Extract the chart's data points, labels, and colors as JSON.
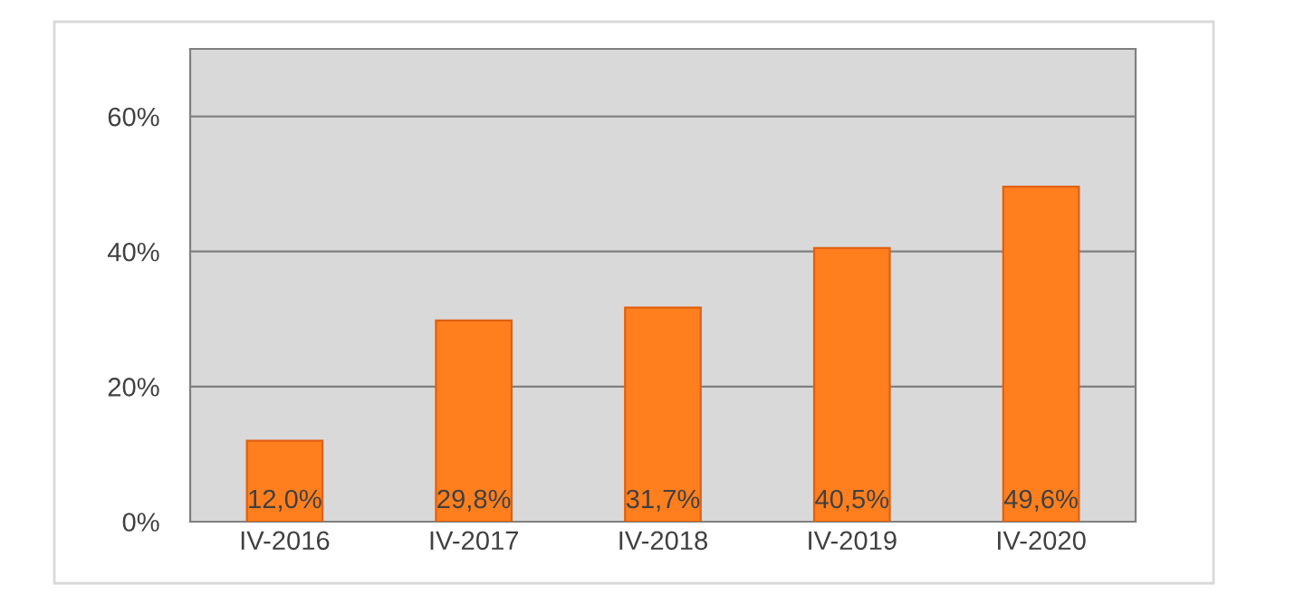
{
  "chart_data": {
    "type": "bar",
    "categories": [
      "IV-2016",
      "IV-2017",
      "IV-2018",
      "IV-2019",
      "IV-2020"
    ],
    "values": [
      12.0,
      29.8,
      31.7,
      40.5,
      49.6
    ],
    "value_labels": [
      "12,0%",
      "29,8%",
      "31,7%",
      "40,5%",
      "49,6%"
    ],
    "color": "#ff7f1e",
    "ylim": [
      0,
      70
    ],
    "yticks": [
      {
        "value": 0,
        "label": "0%"
      },
      {
        "value": 20,
        "label": "20%"
      },
      {
        "value": 40,
        "label": "40%"
      },
      {
        "value": 60,
        "label": "60%"
      }
    ],
    "grid": "y"
  }
}
